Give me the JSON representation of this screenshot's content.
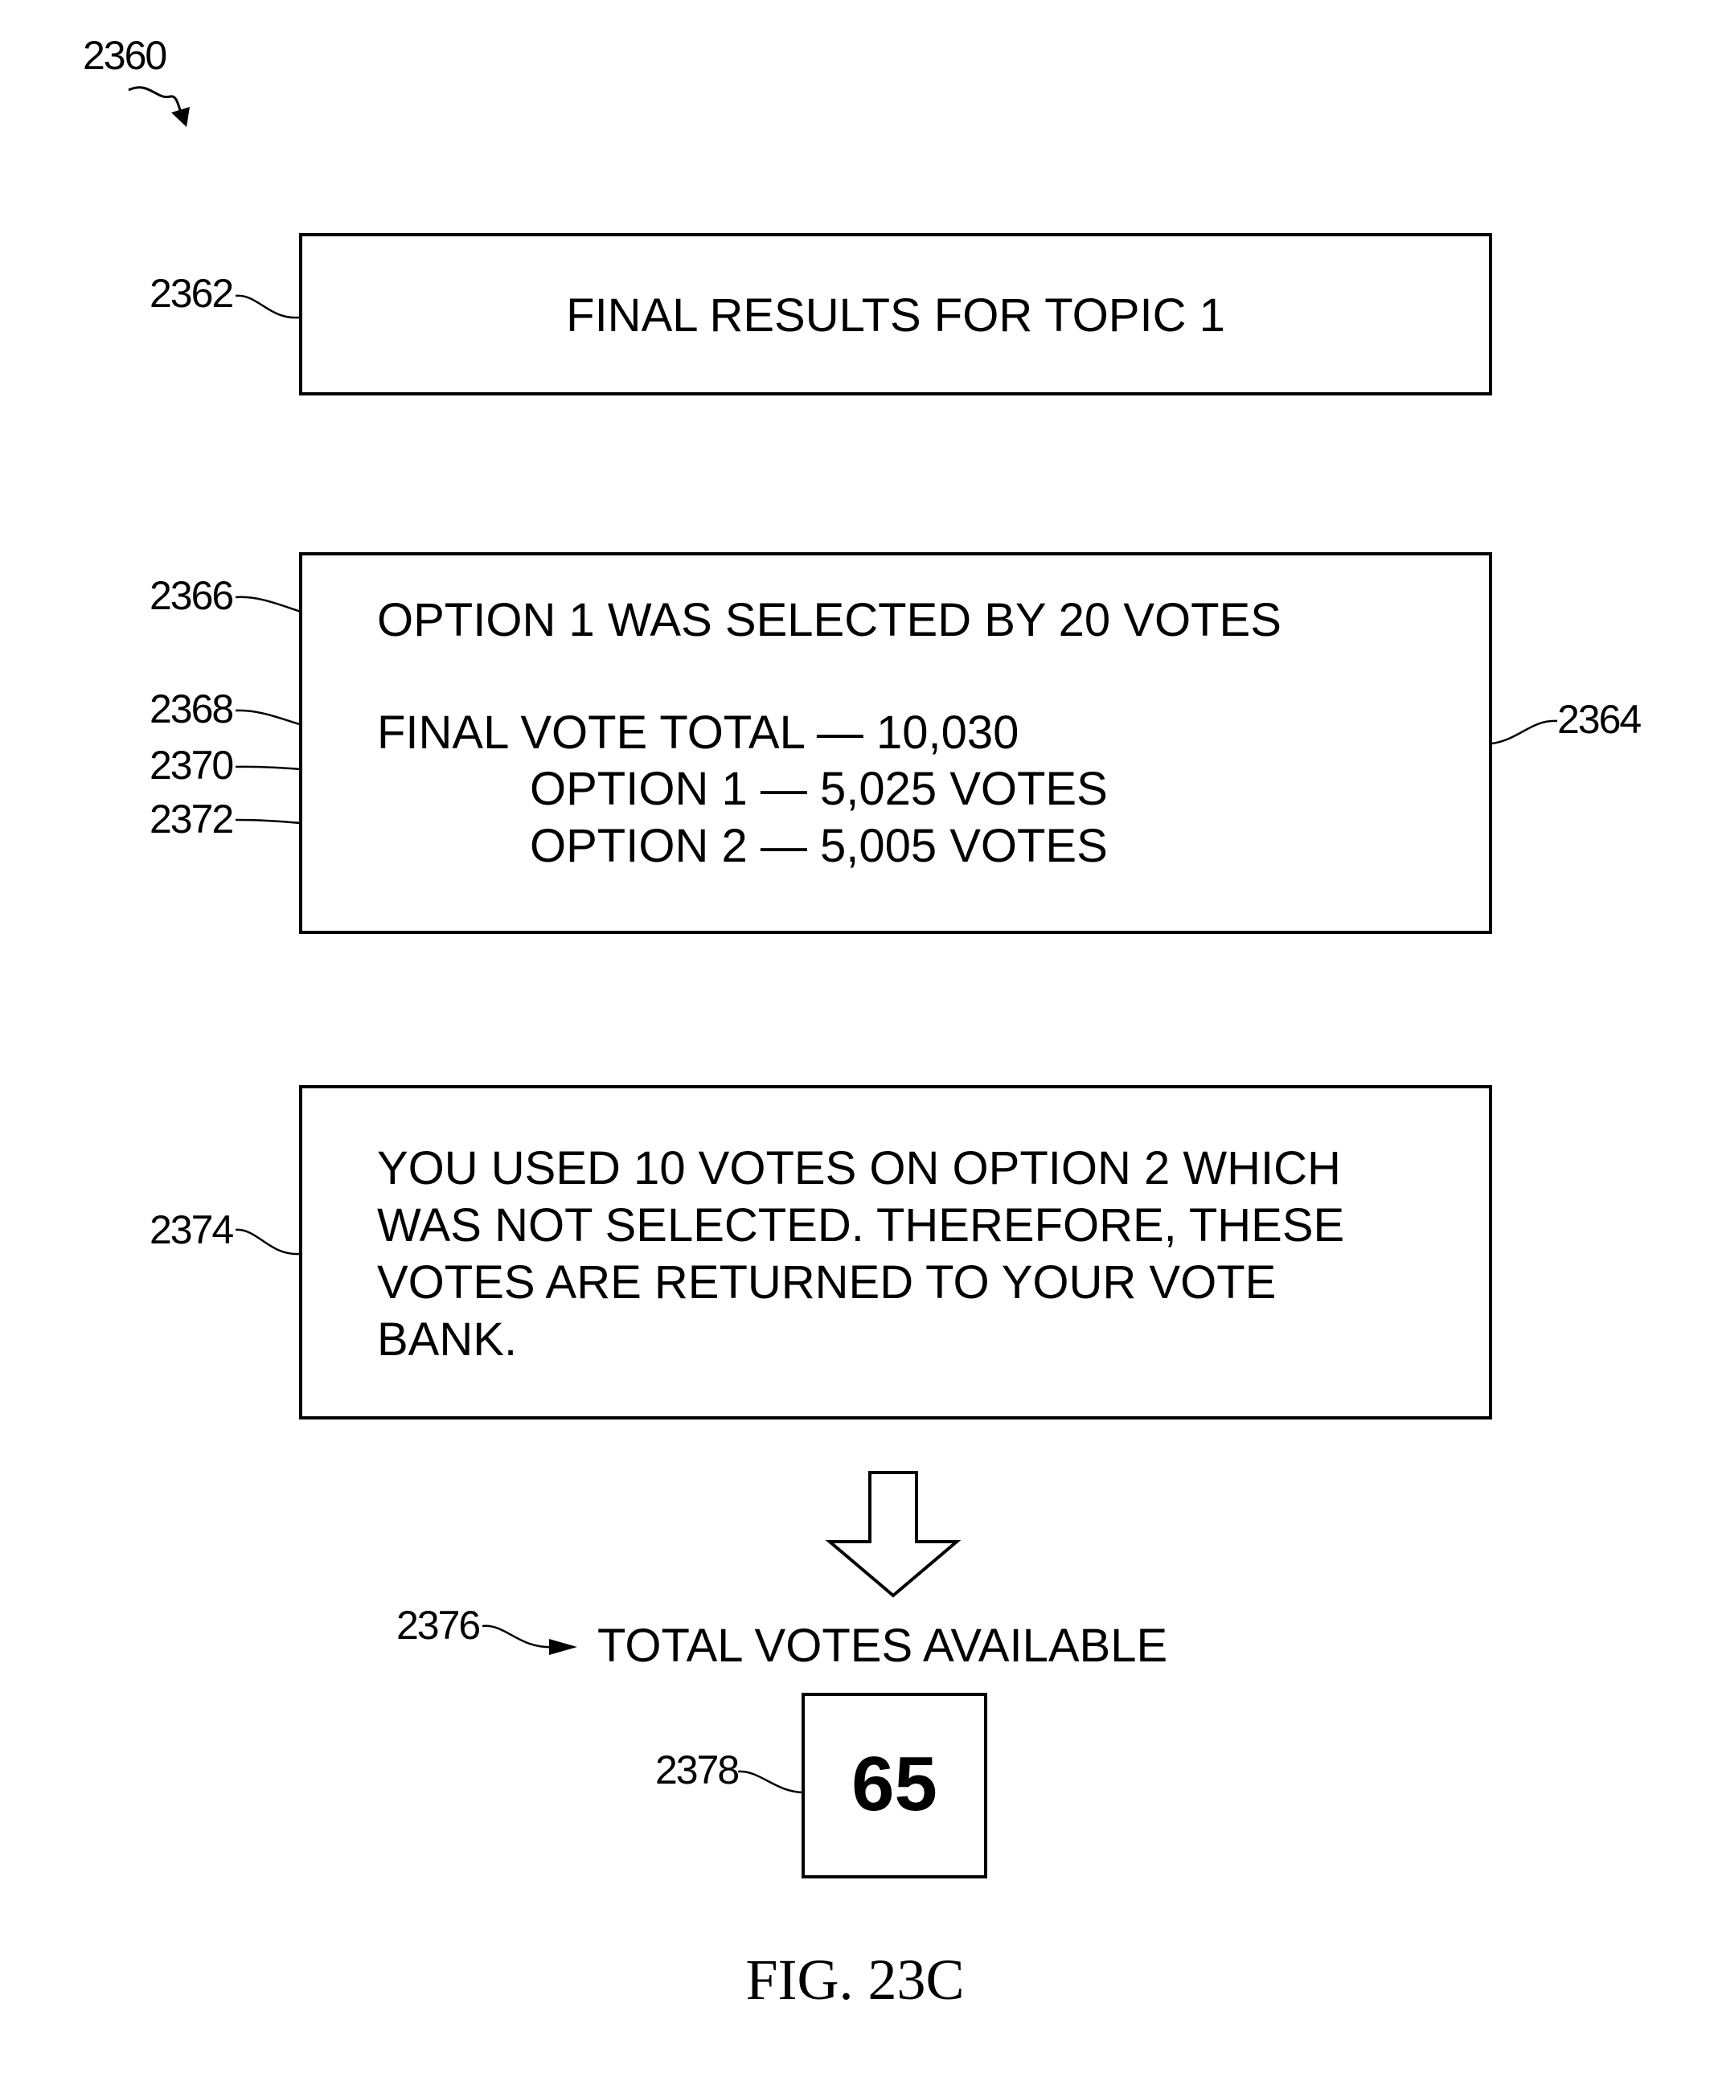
{
  "figure": {
    "ref": "2360",
    "caption": "FIG. 23C"
  },
  "header_box": {
    "ref": "2362",
    "title": "FINAL RESULTS FOR TOPIC 1"
  },
  "results_box": {
    "ref": "2364",
    "selected_line": {
      "ref": "2366",
      "text": "OPTION 1 WAS SELECTED BY 20 VOTES"
    },
    "total_line": {
      "ref": "2368",
      "text": "FINAL VOTE TOTAL — 10,030"
    },
    "option_lines": [
      {
        "ref": "2370",
        "text": "OPTION 1 — 5,025 VOTES"
      },
      {
        "ref": "2372",
        "text": "OPTION 2 — 5,005 VOTES"
      }
    ]
  },
  "message_box": {
    "ref": "2374",
    "text": "YOU USED 10 VOTES ON OPTION 2 WHICH WAS NOT SELECTED. THEREFORE, THESE VOTES ARE RETURNED TO YOUR VOTE BANK."
  },
  "down_arrow_icon": "hollow-down-arrow",
  "vote_bank": {
    "ref": "2376",
    "label": "TOTAL VOTES AVAILABLE",
    "count_ref": "2378",
    "count": "65"
  }
}
